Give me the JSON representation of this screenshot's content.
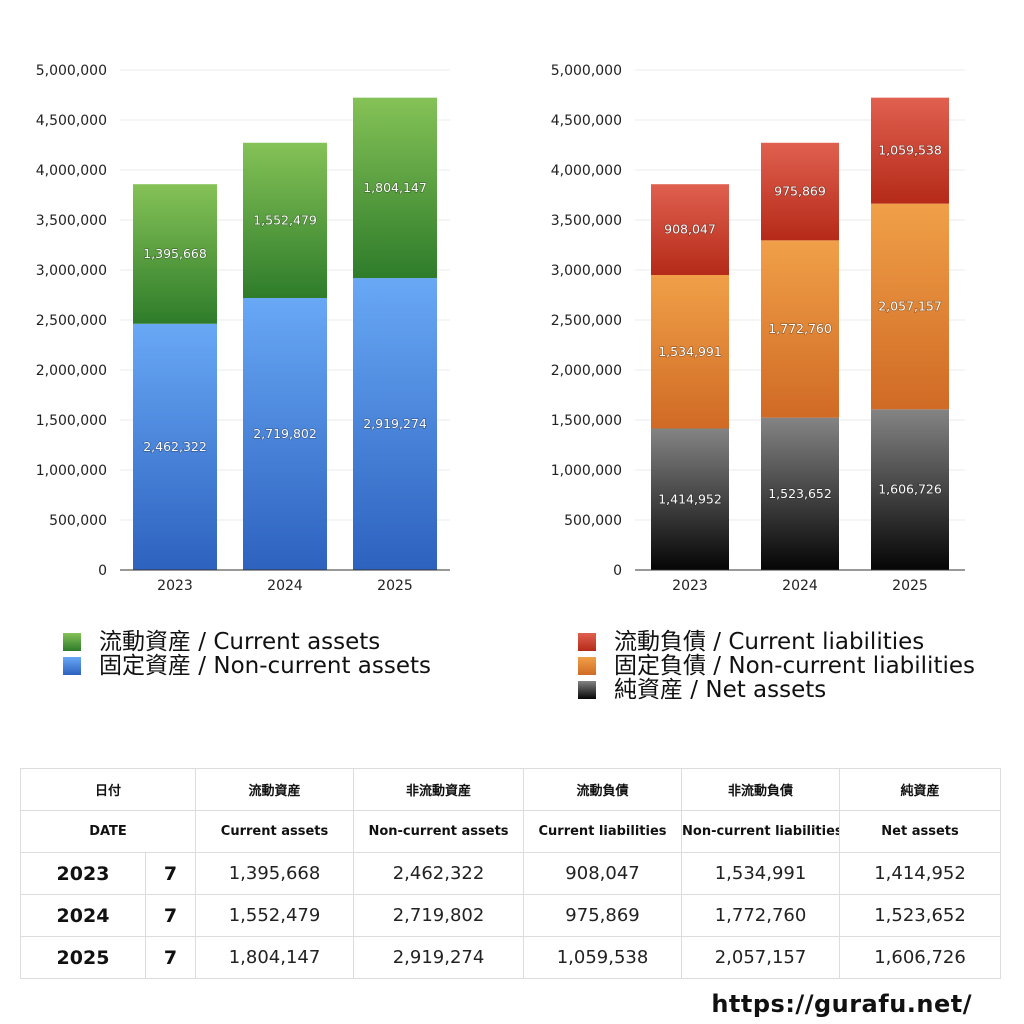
{
  "chart_data": [
    {
      "type": "bar",
      "stacked": true,
      "categories": [
        "2023",
        "2024",
        "2025"
      ],
      "ylim": [
        0,
        5000000
      ],
      "yticks": [
        0,
        500000,
        1000000,
        1500000,
        2000000,
        2500000,
        3000000,
        3500000,
        4000000,
        4500000,
        5000000
      ],
      "ytick_labels": [
        "0",
        "500,000",
        "1,000,000",
        "1,500,000",
        "2,000,000",
        "2,500,000",
        "3,000,000",
        "3,500,000",
        "4,000,000",
        "4,500,000",
        "5,000,000"
      ],
      "grid": true,
      "legend_position": "bottom",
      "series": [
        {
          "name": "固定資産 / Non-current assets",
          "values": [
            2462322,
            2719802,
            2919274
          ],
          "labels": [
            "2,462,322",
            "2,719,802",
            "2,919,274"
          ],
          "color_top": "#68a8f5",
          "color_bottom": "#2d62bf"
        },
        {
          "name": "流動資産 / Current assets",
          "values": [
            1395668,
            1552479,
            1804147
          ],
          "labels": [
            "1,395,668",
            "1,552,479",
            "1,804,147"
          ],
          "color_top": "#85c257",
          "color_bottom": "#2e7c2a"
        }
      ],
      "legend_order": [
        1,
        0
      ]
    },
    {
      "type": "bar",
      "stacked": true,
      "categories": [
        "2023",
        "2024",
        "2025"
      ],
      "ylim": [
        0,
        5000000
      ],
      "yticks": [
        0,
        500000,
        1000000,
        1500000,
        2000000,
        2500000,
        3000000,
        3500000,
        4000000,
        4500000,
        5000000
      ],
      "ytick_labels": [
        "0",
        "500,000",
        "1,000,000",
        "1,500,000",
        "2,000,000",
        "2,500,000",
        "3,000,000",
        "3,500,000",
        "4,000,000",
        "4,500,000",
        "5,000,000"
      ],
      "grid": true,
      "legend_position": "bottom",
      "series": [
        {
          "name": "純資産 / Net assets",
          "values": [
            1414952,
            1523652,
            1606726
          ],
          "labels": [
            "1,414,952",
            "1,523,652",
            "1,606,726"
          ],
          "color_top": "#848484",
          "color_bottom": "#050505"
        },
        {
          "name": "固定負債 / Non-current liabilities",
          "values": [
            1534991,
            1772760,
            2057157
          ],
          "labels": [
            "1,534,991",
            "1,772,760",
            "2,057,157"
          ],
          "color_top": "#f0a048",
          "color_bottom": "#d06a25"
        },
        {
          "name": "流動負債 / Current liabilities",
          "values": [
            908047,
            975869,
            1059538
          ],
          "labels": [
            "908,047",
            "975,869",
            "1,059,538"
          ],
          "color_top": "#e06050",
          "color_bottom": "#b52a18"
        }
      ],
      "legend_order": [
        2,
        1,
        0
      ]
    }
  ],
  "table": {
    "header_jp": [
      "日付",
      "流動資産",
      "非流動資産",
      "流動負債",
      "非流動負債",
      "純資産"
    ],
    "header_en": [
      "DATE",
      "Current assets",
      "Non-current assets",
      "Current liabilities",
      "Non-current liabilities",
      "Net assets"
    ],
    "rows": [
      {
        "year": "2023",
        "count": "7",
        "values": [
          "1,395,668",
          "2,462,322",
          "908,047",
          "1,534,991",
          "1,414,952"
        ]
      },
      {
        "year": "2024",
        "count": "7",
        "values": [
          "1,552,479",
          "2,719,802",
          "975,869",
          "1,772,760",
          "1,523,652"
        ]
      },
      {
        "year": "2025",
        "count": "7",
        "values": [
          "1,804,147",
          "2,919,274",
          "1,059,538",
          "2,057,157",
          "1,606,726"
        ]
      }
    ]
  },
  "source": "https://gurafu.net/"
}
